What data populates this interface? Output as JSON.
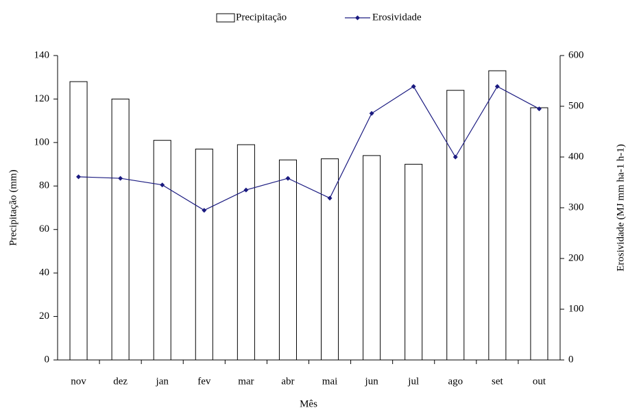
{
  "chart_data": {
    "type": "bar_line",
    "xlabel": "Mês",
    "ylabel": "Precipitação (mm)",
    "y2label": "Erosividade (MJ mm ha-1 h-1)",
    "categories": [
      "nov",
      "dez",
      "jan",
      "fev",
      "mar",
      "abr",
      "mai",
      "jun",
      "jul",
      "ago",
      "set",
      "out"
    ],
    "series": [
      {
        "name": "Precipitação",
        "type": "bar",
        "color": "#ffffff",
        "values": [
          128,
          120,
          101,
          97,
          99,
          92,
          92.5,
          94,
          90,
          124,
          133,
          116
        ]
      },
      {
        "name": "Erosividade",
        "type": "line",
        "axis": "y2",
        "color": "#1a1a80",
        "values": [
          361,
          358,
          345,
          295,
          335,
          358,
          319,
          486,
          539,
          400,
          539,
          495
        ]
      }
    ],
    "ylim": [
      0,
      140
    ],
    "yticks": [
      0,
      20,
      40,
      60,
      80,
      100,
      120,
      140
    ],
    "y2lim": [
      0,
      600
    ],
    "y2ticks": [
      0,
      100,
      200,
      300,
      400,
      500,
      600
    ],
    "legend": "top"
  }
}
